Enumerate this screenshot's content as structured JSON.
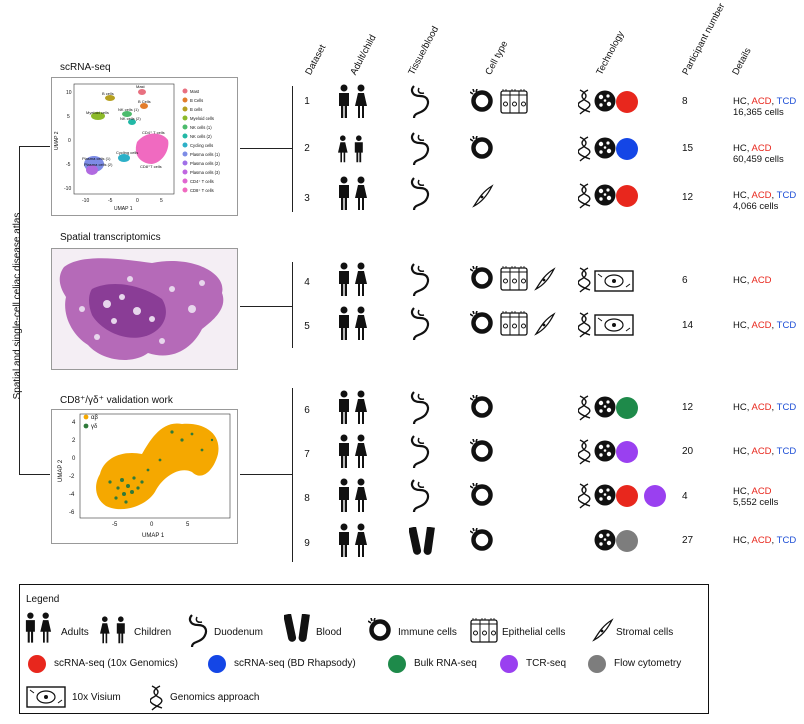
{
  "side_label": "Spatial and single-cell celiac disease atlas",
  "sections": {
    "scrna": "scRNA-seq",
    "spatial": "Spatial transcriptomics",
    "validation": "CD8⁺/γδ⁺ validation work"
  },
  "headers": [
    "Dataset",
    "Adult/child",
    "Tissue/blood",
    "Cell type",
    "Technology",
    "Participant number",
    "Details"
  ],
  "umap1": {
    "xlabel": "UMAP 1",
    "ylabel": "UMAP 2",
    "yticks": [
      "10",
      "5",
      "0",
      "-5",
      "-10"
    ],
    "xticks": [
      "-10",
      "-5",
      "0",
      "5"
    ],
    "legend": [
      "Mast",
      "B Cells",
      "B cells",
      "Myeloid cells",
      "NK cells (1)",
      "NK cells (2)",
      "Cycling cells",
      "Plasma cells (1)",
      "Plasma cells (2)",
      "Plasma cells (3)",
      "CD4⁺ T cells",
      "CD8⁺ T cells"
    ],
    "labels": [
      "B cells",
      "Mast",
      "B Cells",
      "Myeloid cells",
      "NK cells (1)",
      "NK cells (2)",
      "CD4⁺ T cells",
      "Cycling cells",
      "Plasma cells (1)",
      "Plasma cells (2)",
      "CD8⁺T cells"
    ]
  },
  "umap2": {
    "xlabel": "UMAP 1",
    "ylabel": "UMAP 2",
    "yticks": [
      "4",
      "2",
      "0",
      "-2",
      "-4",
      "-6"
    ],
    "xticks": [
      "-5",
      "0",
      "5"
    ],
    "legend": [
      "αβ",
      "γδ"
    ],
    "colors": [
      "#f5a800",
      "#2f7a3a"
    ]
  },
  "rows": [
    {
      "n": "1",
      "part": "8",
      "det1": "HC, ",
      "acd": "ACD",
      "sep": ", ",
      "tcd": "TCD",
      "det2": "16,365 cells"
    },
    {
      "n": "2",
      "part": "15",
      "det1": "HC, ",
      "acd": "ACD",
      "sep": "",
      "tcd": "",
      "det2": "60,459 cells"
    },
    {
      "n": "3",
      "part": "12",
      "det1": "HC, ",
      "acd": "ACD",
      "sep": ", ",
      "tcd": "TCD",
      "det2": "4,066 cells"
    },
    {
      "n": "4",
      "part": "6",
      "det1": "HC, ",
      "acd": "ACD",
      "sep": "",
      "tcd": "",
      "det2": ""
    },
    {
      "n": "5",
      "part": "14",
      "det1": "HC, ",
      "acd": "ACD",
      "sep": ", ",
      "tcd": "TCD",
      "det2": ""
    },
    {
      "n": "6",
      "part": "12",
      "det1": "HC, ",
      "acd": "ACD",
      "sep": ", ",
      "tcd": "TCD",
      "det2": ""
    },
    {
      "n": "7",
      "part": "20",
      "det1": "HC, ",
      "acd": "ACD",
      "sep": ", ",
      "tcd": "TCD",
      "det2": ""
    },
    {
      "n": "8",
      "part": "4",
      "det1": "HC, ",
      "acd": "ACD",
      "sep": "",
      "tcd": "",
      "det2": "5,552 cells"
    },
    {
      "n": "9",
      "part": "27",
      "det1": "HC, ",
      "acd": "ACD",
      "sep": ", ",
      "tcd": "TCD",
      "det2": ""
    }
  ],
  "legend": {
    "title": "Legend",
    "adults": "Adults",
    "children": "Children",
    "duodenum": "Duodenum",
    "blood": "Blood",
    "immune": "Immune cells",
    "epithelial": "Epithelial cells",
    "stromal": "Stromal cells",
    "scrna10x": "scRNA-seq (10x Genomics)",
    "scrnabd": "scRNA-seq (BD Rhapsody)",
    "bulk": "Bulk RNA-seq",
    "tcr": "TCR-seq",
    "flow": "Flow cytometry",
    "visium": "10x Visium",
    "genomics": "Genomics approach"
  },
  "colors": {
    "tenx": "#e8271d",
    "bd": "#1446e6",
    "bulk": "#1e8a4a",
    "tcr": "#9a40f0",
    "flow": "#7d7d7d"
  }
}
